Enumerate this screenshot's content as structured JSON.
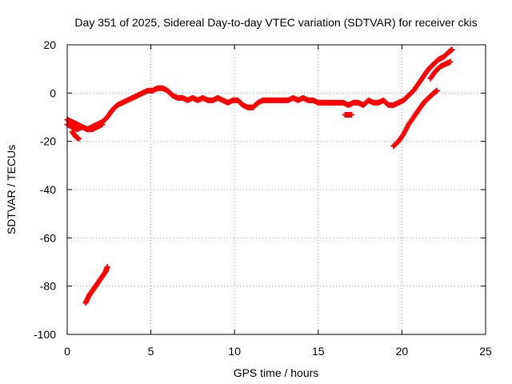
{
  "chart_data": {
    "type": "scatter",
    "title": "Day 351 of 2025, Sidereal Day-to-day VTEC variation (SDTVAR) for receiver ckis",
    "xlabel": "GPS time / hours",
    "ylabel": "SDTVAR / TECUs",
    "xlim": [
      0,
      25
    ],
    "ylim": [
      -100,
      20
    ],
    "xticks": [
      0,
      5,
      10,
      15,
      20,
      25
    ],
    "yticks": [
      -100,
      -80,
      -60,
      -40,
      -20,
      0,
      20
    ],
    "grid": true,
    "legend": "none",
    "marker": "plus",
    "color": "#ff0000",
    "series": [
      {
        "x": [
          0.0,
          0.3,
          0.6,
          0.9,
          1.2,
          1.5,
          1.8,
          2.1,
          2.4,
          2.7,
          3.0,
          3.3,
          3.6,
          3.9,
          4.2,
          4.5,
          4.8,
          5.1,
          5.4,
          5.7,
          6.0,
          6.3,
          6.6,
          6.9,
          7.2,
          7.5,
          7.8,
          8.1,
          8.4,
          8.7,
          9.0,
          9.3,
          9.6,
          9.9,
          10.2,
          10.5,
          10.8,
          11.1,
          11.4,
          11.7,
          12.0,
          12.3,
          12.6,
          12.9,
          13.2,
          13.5,
          13.8,
          14.1,
          14.4,
          14.7,
          15.0,
          15.3,
          15.6,
          15.9,
          16.2,
          16.5,
          16.8,
          17.1,
          17.4,
          17.7,
          18.0,
          18.3,
          18.6,
          18.9,
          19.2,
          19.5,
          19.8,
          20.1,
          20.4,
          20.7,
          21.0,
          21.3,
          21.6,
          21.9,
          22.2,
          22.5,
          22.8,
          23.0
        ],
        "y": [
          -13,
          -14,
          -15,
          -14,
          -15,
          -14,
          -13,
          -12,
          -10,
          -7,
          -5,
          -4,
          -3,
          -2,
          -1,
          0,
          1,
          1,
          2,
          2,
          1,
          -1,
          -2,
          -2,
          -3,
          -2,
          -3,
          -2,
          -3,
          -3,
          -2,
          -3,
          -4,
          -3,
          -3,
          -5,
          -6,
          -6,
          -4,
          -3,
          -3,
          -3,
          -3,
          -3,
          -3,
          -2,
          -3,
          -2,
          -3,
          -3,
          -4,
          -4,
          -4,
          -4,
          -4,
          -4,
          -5,
          -4,
          -4,
          -5,
          -3,
          -4,
          -4,
          -3,
          -5,
          -5,
          -4,
          -3,
          -1,
          1,
          4,
          7,
          10,
          12,
          14,
          15,
          17,
          18
        ]
      },
      {
        "x": [
          0.0,
          0.3,
          0.6,
          0.9,
          1.2,
          1.5,
          1.8,
          2.1
        ],
        "y": [
          -11,
          -12,
          -13,
          -14,
          -15,
          -15,
          -14,
          -13
        ]
      },
      {
        "x": [
          0.3,
          0.5,
          0.7
        ],
        "y": [
          -16,
          -18,
          -19
        ]
      },
      {
        "x": [
          16.6,
          16.8,
          17.0
        ],
        "y": [
          -9,
          -9,
          -9
        ]
      },
      {
        "x": [
          21.7,
          22.0,
          22.3,
          22.6,
          22.9
        ],
        "y": [
          6,
          9,
          11,
          12,
          13
        ]
      },
      {
        "x": [
          1.1,
          1.3,
          1.5,
          1.7,
          1.9,
          2.1,
          2.3,
          2.4
        ],
        "y": [
          -87,
          -84,
          -82,
          -80,
          -78,
          -76,
          -74,
          -72
        ]
      },
      {
        "x": [
          19.5,
          19.8,
          20.1,
          20.4,
          20.7,
          21.0,
          21.3,
          21.6,
          21.9,
          22.1
        ],
        "y": [
          -22,
          -20,
          -17,
          -13,
          -10,
          -7,
          -4,
          -2,
          0,
          1
        ]
      }
    ]
  }
}
